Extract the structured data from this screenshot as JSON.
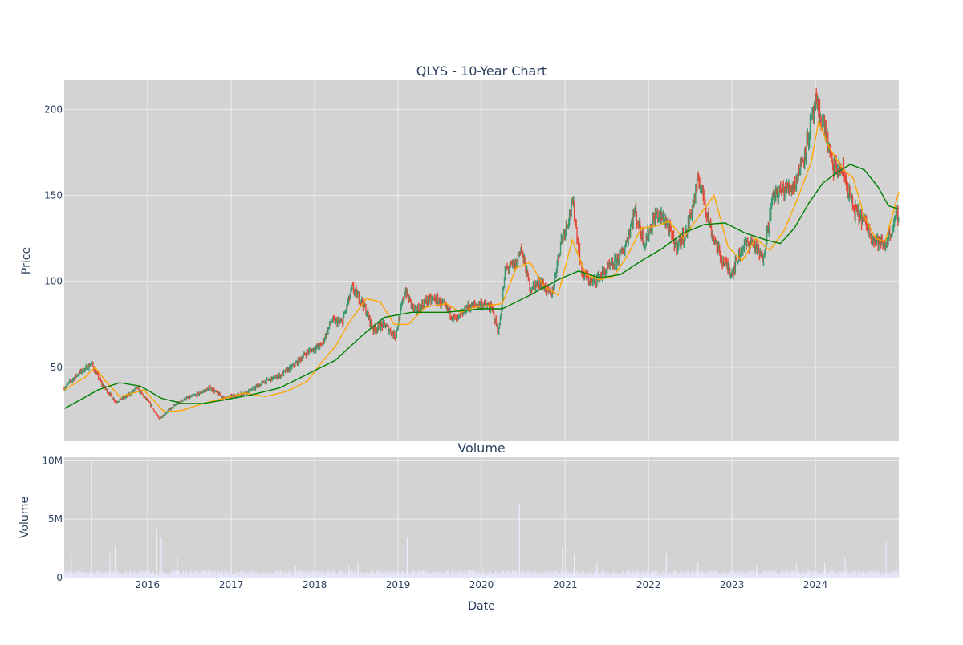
{
  "chart_data": [
    {
      "type": "candlestick",
      "title": "QLYS - 10-Year Chart",
      "ylabel": "Price",
      "ylim": [
        7,
        217
      ],
      "yticks": [
        50,
        100,
        150,
        200
      ],
      "x_range": [
        "2015-01-01",
        "2024-12-31"
      ],
      "x_tick_labels": [
        "2016",
        "2017",
        "2018",
        "2019",
        "2020",
        "2021",
        "2022",
        "2023",
        "2024"
      ],
      "plot_background": "#d3d3d3",
      "grid": true,
      "colors": {
        "up": "#3d9970",
        "down": "#e8483a",
        "ma_short": "#ffa500",
        "ma_long": "#008000"
      },
      "close_series": {
        "x": [
          "2015-01-02",
          "2015-03-01",
          "2015-05-01",
          "2015-06-15",
          "2015-08-15",
          "2015-10-01",
          "2015-11-15",
          "2016-01-15",
          "2016-02-20",
          "2016-04-01",
          "2016-06-01",
          "2016-08-01",
          "2016-10-01",
          "2016-12-01",
          "2017-02-01",
          "2017-04-01",
          "2017-06-01",
          "2017-08-01",
          "2017-10-01",
          "2017-12-01",
          "2018-02-01",
          "2018-03-15",
          "2018-05-01",
          "2018-06-15",
          "2018-08-01",
          "2018-09-15",
          "2018-11-01",
          "2018-12-20",
          "2019-02-01",
          "2019-03-15",
          "2019-05-01",
          "2019-06-15",
          "2019-08-01",
          "2019-09-15",
          "2019-11-01",
          "2019-12-31",
          "2020-02-15",
          "2020-03-16",
          "2020-04-15",
          "2020-06-01",
          "2020-06-20",
          "2020-08-01",
          "2020-09-15",
          "2020-11-01",
          "2020-12-15",
          "2021-02-05",
          "2021-03-15",
          "2021-05-01",
          "2021-06-15",
          "2021-08-01",
          "2021-09-15",
          "2021-11-01",
          "2021-12-15",
          "2022-02-01",
          "2022-03-15",
          "2022-05-01",
          "2022-06-15",
          "2022-08-10",
          "2022-10-01",
          "2022-11-15",
          "2023-01-01",
          "2023-02-15",
          "2023-04-01",
          "2023-05-15",
          "2023-07-01",
          "2023-08-15",
          "2023-10-01",
          "2023-11-15",
          "2024-01-01",
          "2024-02-10",
          "2024-03-15",
          "2024-05-01",
          "2024-06-15",
          "2024-08-01",
          "2024-09-15",
          "2024-11-01",
          "2024-12-31"
        ],
        "close": [
          38,
          46,
          52,
          40,
          30,
          33,
          38,
          28,
          20,
          25,
          31,
          34,
          38,
          32,
          34,
          37,
          42,
          45,
          51,
          59,
          63,
          77,
          76,
          96,
          87,
          72,
          75,
          68,
          95,
          82,
          88,
          90,
          84,
          77,
          85,
          87,
          84,
          70,
          107,
          110,
          120,
          96,
          100,
          91,
          124,
          145,
          105,
          99,
          105,
          110,
          118,
          141,
          122,
          139,
          136,
          120,
          128,
          160,
          130,
          113,
          105,
          120,
          123,
          113,
          150,
          153,
          156,
          175,
          202,
          190,
          167,
          164,
          142,
          135,
          124,
          121,
          140
        ]
      },
      "ma_short": {
        "x": [
          "2015-01-02",
          "2015-04-01",
          "2015-05-15",
          "2015-07-01",
          "2015-09-01",
          "2015-11-01",
          "2015-12-15",
          "2016-02-01",
          "2016-03-15",
          "2016-06-01",
          "2016-09-01",
          "2016-12-01",
          "2017-03-01",
          "2017-06-01",
          "2017-09-01",
          "2017-12-01",
          "2018-02-01",
          "2018-04-01",
          "2018-06-01",
          "2018-08-15",
          "2018-10-15",
          "2018-12-15",
          "2019-02-15",
          "2019-05-01",
          "2019-08-01",
          "2019-10-01",
          "2019-12-01",
          "2020-02-01",
          "2020-04-01",
          "2020-06-01",
          "2020-08-01",
          "2020-10-01",
          "2020-12-01",
          "2021-02-01",
          "2021-04-01",
          "2021-06-01",
          "2021-08-01",
          "2021-10-01",
          "2021-12-01",
          "2022-02-01",
          "2022-04-01",
          "2022-06-01",
          "2022-08-15",
          "2022-10-15",
          "2022-12-15",
          "2023-02-15",
          "2023-04-15",
          "2023-06-15",
          "2023-08-15",
          "2023-10-15",
          "2023-12-15",
          "2024-01-15",
          "2024-03-01",
          "2024-05-01",
          "2024-06-15",
          "2024-08-01",
          "2024-09-20",
          "2024-11-01",
          "2024-12-31"
        ],
        "values": [
          37,
          44,
          50,
          42,
          33,
          35,
          37,
          30,
          24,
          25,
          29,
          32,
          35,
          33,
          36,
          42,
          53,
          62,
          76,
          90,
          88,
          75,
          75,
          85,
          87,
          82,
          85,
          86,
          87,
          108,
          111,
          97,
          92,
          124,
          104,
          101,
          103,
          115,
          131,
          132,
          135,
          125,
          139,
          150,
          120,
          112,
          125,
          118,
          129,
          148,
          170,
          193,
          178,
          165,
          160,
          138,
          125,
          123,
          152
        ]
      },
      "ma_long": {
        "x": [
          "2015-01-02",
          "2015-06-01",
          "2015-09-01",
          "2015-12-01",
          "2016-03-01",
          "2016-06-01",
          "2016-09-01",
          "2016-12-01",
          "2017-04-01",
          "2017-08-01",
          "2017-12-01",
          "2018-04-01",
          "2018-08-01",
          "2018-11-01",
          "2019-03-01",
          "2019-08-01",
          "2020-01-01",
          "2020-04-01",
          "2020-08-01",
          "2020-12-01",
          "2021-03-01",
          "2021-06-01",
          "2021-09-01",
          "2021-12-01",
          "2022-03-01",
          "2022-06-01",
          "2022-09-01",
          "2022-12-01",
          "2023-03-01",
          "2023-06-01",
          "2023-08-01",
          "2023-10-01",
          "2023-12-01",
          "2024-02-01",
          "2024-04-01",
          "2024-06-01",
          "2024-08-01",
          "2024-10-01",
          "2024-11-15",
          "2024-12-31"
        ],
        "values": [
          26,
          37,
          41,
          39,
          32,
          29,
          29,
          31,
          34,
          38,
          46,
          54,
          69,
          79,
          82,
          82,
          84,
          84,
          92,
          101,
          106,
          102,
          104,
          112,
          119,
          128,
          133,
          134,
          128,
          124,
          122,
          131,
          145,
          157,
          163,
          168,
          165,
          155,
          144,
          142
        ]
      }
    },
    {
      "type": "bar",
      "title": "Volume",
      "xlabel": "Date",
      "ylabel": "Volume",
      "ylim": [
        0,
        10300000
      ],
      "yticks": [
        0,
        5000000,
        10000000
      ],
      "ytick_labels": [
        "0",
        "5M",
        "10M"
      ],
      "x_range": [
        "2015-01-01",
        "2024-12-31"
      ],
      "x_tick_labels": [
        "2016",
        "2017",
        "2018",
        "2019",
        "2020",
        "2021",
        "2022",
        "2023",
        "2024"
      ],
      "bar_color": "#e6e6fa",
      "baseline_volume": 400000,
      "spikes": {
        "x": [
          "2015-02-01",
          "2015-05-01",
          "2015-07-20",
          "2015-08-12",
          "2016-02-10",
          "2016-03-01",
          "2016-05-10",
          "2017-10-10",
          "2018-06-01",
          "2018-07-10",
          "2019-02-10",
          "2020-06-15",
          "2020-12-20",
          "2021-02-10",
          "2021-05-20",
          "2022-03-20",
          "2022-08-05",
          "2023-04-20",
          "2023-10-10",
          "2024-02-10",
          "2024-05-10",
          "2024-07-10",
          "2024-11-05",
          "2024-12-20"
        ],
        "values": [
          1900000,
          9900000,
          2100000,
          2700000,
          4100000,
          3400000,
          1800000,
          1000000,
          1000000,
          1300000,
          3400000,
          6300000,
          2600000,
          2000000,
          1300000,
          2100000,
          1300000,
          1000000,
          1200000,
          1300000,
          1700000,
          1500000,
          3000000,
          1200000
        ]
      }
    }
  ]
}
